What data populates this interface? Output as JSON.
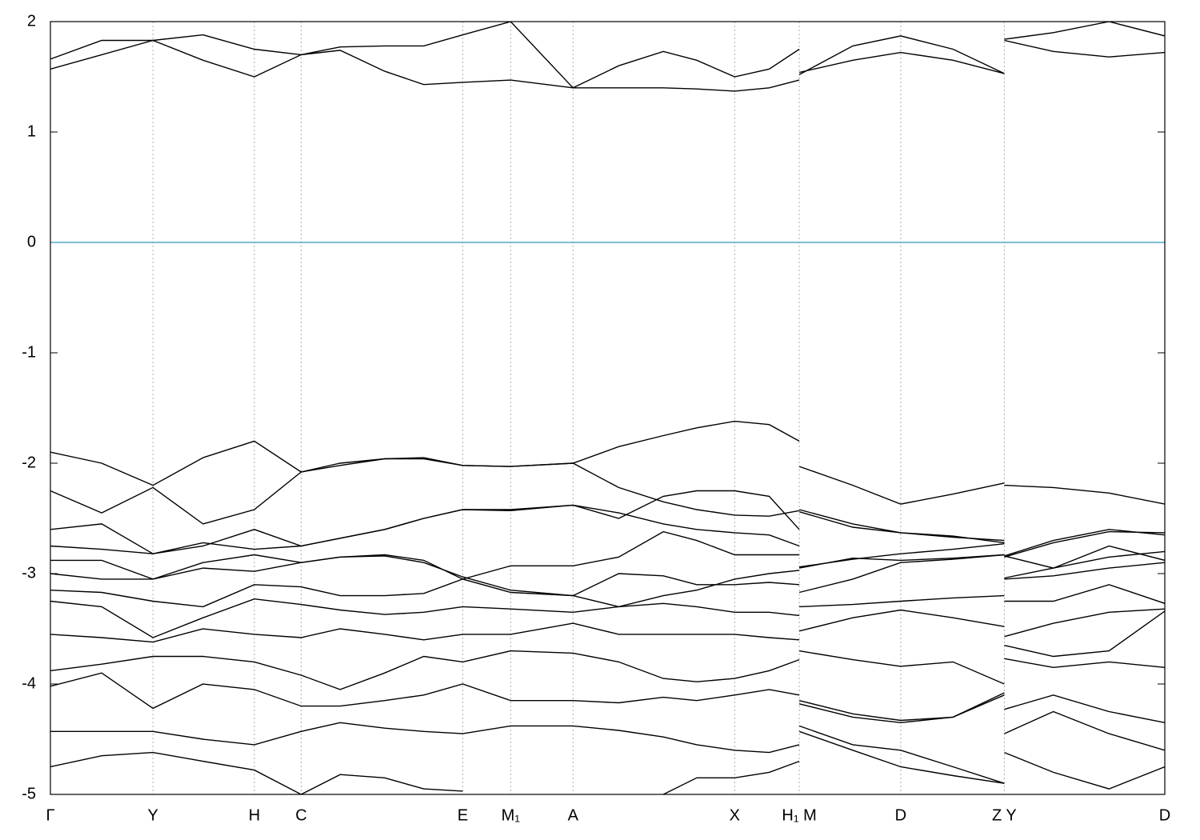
{
  "chart_data": {
    "type": "line",
    "x": [
      0,
      0.046,
      0.092,
      0.137,
      0.183,
      0.225,
      0.26,
      0.3,
      0.335,
      0.37,
      0.413,
      0.469,
      0.51,
      0.55,
      0.58,
      0.614,
      0.645,
      0.672,
      0.672,
      0.672,
      0.72,
      0.763,
      0.81,
      0.856,
      0.856,
      0.856,
      0.9,
      0.95,
      1.0
    ],
    "xlim": [
      0,
      1
    ],
    "xticks": [
      {
        "value": 0,
        "label": "Γ"
      },
      {
        "value": 0.092,
        "label": "Y"
      },
      {
        "value": 0.183,
        "label": "H"
      },
      {
        "value": 0.225,
        "label": "C"
      },
      {
        "value": 0.37,
        "label": "E"
      },
      {
        "value": 0.413,
        "label": "M₁"
      },
      {
        "value": 0.469,
        "label": "A"
      },
      {
        "value": 0.614,
        "label": "X"
      },
      {
        "value": 0.672,
        "label": "H₁ M"
      },
      {
        "value": 0.763,
        "label": "D"
      },
      {
        "value": 0.856,
        "label": "Z Y"
      },
      {
        "value": 1.0,
        "label": "D"
      }
    ],
    "ylim": [
      -5,
      2
    ],
    "yticks": [
      -5,
      -4,
      -3,
      -2,
      -1,
      0,
      1,
      2
    ],
    "grid": true,
    "reference_line": {
      "value": 0,
      "color": "#4fa8c5"
    },
    "series": [
      {
        "color": "#000000",
        "values": [
          1.57,
          1.7,
          1.83,
          1.65,
          1.5,
          1.7,
          1.74,
          1.55,
          1.43,
          1.45,
          1.47,
          1.4,
          1.4,
          1.4,
          1.39,
          1.37,
          1.4,
          1.47,
          null,
          1.54,
          1.65,
          1.72,
          1.65,
          1.53,
          null,
          1.83,
          1.73,
          1.68,
          1.72
        ]
      },
      {
        "color": "#000000",
        "values": [
          1.66,
          1.83,
          1.83,
          1.88,
          1.75,
          1.7,
          1.77,
          1.78,
          1.78,
          1.88,
          2.0,
          1.4,
          1.6,
          1.73,
          1.65,
          1.5,
          1.57,
          1.75,
          null,
          1.52,
          1.78,
          1.87,
          1.75,
          1.53,
          null,
          1.84,
          1.9,
          2.0,
          1.87
        ]
      },
      {
        "color": "#000000",
        "values": [
          -1.9,
          -2.0,
          -2.2,
          -1.95,
          -1.8,
          -2.08,
          -2.0,
          -1.96,
          -1.95,
          -2.02,
          -2.03,
          -2.0,
          -1.85,
          -1.75,
          -1.68,
          -1.62,
          -1.65,
          -1.8,
          null,
          -2.03,
          -2.2,
          -2.37,
          -2.28,
          -2.18,
          null,
          -2.2,
          -2.22,
          -2.27,
          -2.37
        ]
      },
      {
        "color": "#000000",
        "values": [
          -2.25,
          -2.45,
          -2.22,
          -2.55,
          -2.42,
          -2.08,
          -2.02,
          -1.96,
          -1.96,
          -2.02,
          -2.03,
          -2.0,
          -2.22,
          -2.35,
          -2.42,
          -2.47,
          -2.48,
          -2.43,
          null,
          -2.42,
          -2.55,
          -2.63,
          -2.67,
          -2.7,
          null,
          -2.84,
          -2.7,
          -2.6,
          -2.65
        ]
      },
      {
        "color": "#000000",
        "values": [
          -2.6,
          -2.55,
          -2.82,
          -2.75,
          -2.6,
          -2.75,
          -2.68,
          -2.6,
          -2.5,
          -2.42,
          -2.42,
          -2.38,
          -2.5,
          -2.3,
          -2.25,
          -2.25,
          -2.3,
          -2.6,
          null,
          -2.44,
          -2.58,
          -2.63,
          -2.66,
          -2.72,
          null,
          -2.85,
          -2.72,
          -2.62,
          -2.63
        ]
      },
      {
        "color": "#000000",
        "values": [
          -2.75,
          -2.78,
          -2.82,
          -2.72,
          -2.78,
          -2.75,
          -2.68,
          -2.6,
          -2.5,
          -2.42,
          -2.43,
          -2.38,
          -2.45,
          -2.55,
          -2.6,
          -2.63,
          -2.65,
          -2.75,
          null,
          -2.94,
          -2.87,
          -2.82,
          -2.78,
          -2.73,
          null,
          -3.04,
          -2.95,
          -2.85,
          -2.8
        ]
      },
      {
        "color": "#000000",
        "values": [
          -2.88,
          -2.88,
          -3.05,
          -2.9,
          -2.83,
          -2.9,
          -2.85,
          -2.83,
          -2.88,
          -3.05,
          -2.93,
          -2.93,
          -2.85,
          -2.62,
          -2.7,
          -2.83,
          -2.83,
          -2.83,
          null,
          -2.95,
          -2.86,
          -2.88,
          -2.86,
          -2.83,
          null,
          -2.84,
          -2.95,
          -2.75,
          -2.88
        ]
      },
      {
        "color": "#000000",
        "values": [
          -3.0,
          -3.05,
          -3.05,
          -2.95,
          -2.98,
          -2.9,
          -2.85,
          -2.84,
          -2.9,
          -3.03,
          -3.15,
          -3.2,
          -3.0,
          -3.02,
          -3.1,
          -3.1,
          -3.08,
          -3.1,
          null,
          -3.17,
          -3.05,
          -2.9,
          -2.87,
          -2.83,
          null,
          -3.05,
          -3.02,
          -2.95,
          -2.9
        ]
      },
      {
        "color": "#000000",
        "values": [
          -3.15,
          -3.17,
          -3.25,
          -3.3,
          -3.1,
          -3.12,
          -3.2,
          -3.2,
          -3.18,
          -3.05,
          -3.17,
          -3.2,
          -3.3,
          -3.2,
          -3.15,
          -3.05,
          -3.0,
          -2.97,
          null,
          -3.3,
          -3.28,
          -3.25,
          -3.22,
          -3.2,
          null,
          -3.25,
          -3.25,
          -3.1,
          -3.27
        ]
      },
      {
        "color": "#000000",
        "values": [
          -3.25,
          -3.3,
          -3.58,
          -3.4,
          -3.23,
          -3.28,
          -3.33,
          -3.37,
          -3.35,
          -3.3,
          -3.32,
          -3.35,
          -3.3,
          -3.27,
          -3.3,
          -3.35,
          -3.35,
          -3.38,
          null,
          -3.52,
          -3.4,
          -3.33,
          -3.4,
          -3.48,
          null,
          -3.57,
          -3.45,
          -3.35,
          -3.32
        ]
      },
      {
        "color": "#000000",
        "values": [
          -3.55,
          -3.58,
          -3.62,
          -3.5,
          -3.55,
          -3.58,
          -3.5,
          -3.55,
          -3.6,
          -3.55,
          -3.55,
          -3.45,
          -3.55,
          -3.55,
          -3.55,
          -3.55,
          -3.58,
          -3.6,
          null,
          -3.7,
          -3.78,
          -3.84,
          -3.8,
          -4.0,
          null,
          -3.65,
          -3.75,
          -3.7,
          -3.34
        ]
      },
      {
        "color": "#000000",
        "values": [
          -3.88,
          -3.82,
          -3.75,
          -3.75,
          -3.8,
          -3.92,
          -4.05,
          -3.9,
          -3.75,
          -3.8,
          -3.7,
          -3.72,
          -3.8,
          -3.95,
          -3.98,
          -3.95,
          -3.88,
          -3.78,
          null,
          -4.15,
          -4.27,
          -4.33,
          -4.3,
          -4.08,
          null,
          -3.77,
          -3.85,
          -3.8,
          -3.85
        ]
      },
      {
        "color": "#000000",
        "values": [
          -4.02,
          -3.9,
          -4.22,
          -4.0,
          -4.05,
          -4.2,
          -4.2,
          -4.15,
          -4.1,
          -4.0,
          -4.15,
          -4.15,
          -4.17,
          -4.12,
          -4.15,
          -4.1,
          -4.05,
          -4.1,
          null,
          -4.18,
          -4.3,
          -4.35,
          -4.3,
          -4.1,
          null,
          -4.23,
          -4.1,
          -4.25,
          -4.35
        ]
      },
      {
        "color": "#000000",
        "values": [
          -4.43,
          -4.43,
          -4.43,
          -4.5,
          -4.55,
          -4.43,
          -4.35,
          -4.4,
          -4.43,
          -4.45,
          -4.38,
          -4.38,
          -4.42,
          -4.48,
          -4.55,
          -4.6,
          -4.62,
          -4.55,
          null,
          -4.38,
          -4.55,
          -4.6,
          -4.75,
          -4.9,
          null,
          -4.45,
          -4.25,
          -4.45,
          -4.6
        ]
      },
      {
        "color": "#000000",
        "values": [
          -4.75,
          -4.65,
          -4.62,
          -4.7,
          -4.78,
          -5.0,
          -4.82,
          -4.85,
          -4.95,
          -4.97,
          null,
          null,
          null,
          -5.0,
          -4.85,
          -4.85,
          -4.8,
          -4.7,
          null,
          -4.43,
          -4.6,
          -4.75,
          -4.83,
          -4.9,
          null,
          -4.62,
          -4.8,
          -4.95,
          -4.75
        ]
      }
    ]
  }
}
